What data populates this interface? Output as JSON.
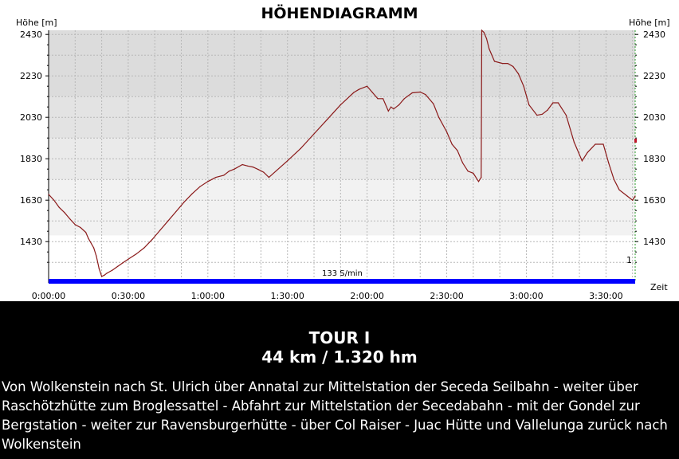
{
  "chart_data": {
    "type": "line",
    "title": "HÖHENDIAGRAMM",
    "ylabel": "Höhe [m]",
    "ylabel_right": "Höhe [m]",
    "xlabel": "Zeit",
    "ylim": [
      1250,
      2450
    ],
    "xlim": [
      0,
      221
    ],
    "yticks": [
      1430,
      1630,
      1830,
      2030,
      2230,
      2430
    ],
    "xticks": [
      0,
      30,
      60,
      90,
      120,
      150,
      180,
      210
    ],
    "xtick_labels": [
      "0:00:00",
      "0:30:00",
      "1:00:00",
      "1:30:00",
      "2:00:00",
      "2:30:00",
      "3:00:00",
      "3:30:00"
    ],
    "speed_label": "133 S/min",
    "right_marker_label": "1",
    "series": [
      {
        "color": "#8b1a1a",
        "x": [
          0,
          2,
          4,
          6,
          8,
          10,
          12,
          14,
          15,
          17,
          18,
          19,
          20,
          21,
          22,
          24,
          26,
          28,
          30,
          33,
          36,
          39,
          42,
          45,
          48,
          51,
          54,
          57,
          60,
          63,
          66,
          68,
          70,
          73,
          75,
          77,
          79,
          81,
          83,
          90,
          95,
          100,
          105,
          110,
          115,
          117,
          120,
          122,
          124,
          126,
          128,
          129,
          130,
          132,
          134,
          137,
          140,
          142,
          145,
          147,
          150,
          152,
          154,
          156,
          158,
          160,
          162,
          163,
          163.2,
          164,
          165,
          166,
          168,
          171,
          173,
          175,
          177,
          179,
          181,
          184,
          186,
          188,
          190,
          192,
          195,
          198,
          201,
          203,
          206,
          209,
          211,
          213,
          215,
          218,
          220,
          221
        ],
        "y": [
          1658,
          1630,
          1595,
          1570,
          1540,
          1512,
          1498,
          1475,
          1445,
          1400,
          1360,
          1300,
          1262,
          1268,
          1278,
          1292,
          1310,
          1328,
          1345,
          1370,
          1400,
          1440,
          1485,
          1530,
          1575,
          1620,
          1660,
          1695,
          1720,
          1740,
          1750,
          1770,
          1780,
          1802,
          1795,
          1790,
          1778,
          1765,
          1740,
          1820,
          1880,
          1950,
          2020,
          2090,
          2150,
          2165,
          2180,
          2150,
          2120,
          2120,
          2060,
          2080,
          2070,
          2090,
          2120,
          2148,
          2152,
          2140,
          2095,
          2030,
          1960,
          1900,
          1870,
          1810,
          1770,
          1760,
          1720,
          1740,
          2450,
          2440,
          2410,
          2360,
          2300,
          2290,
          2290,
          2275,
          2240,
          2180,
          2090,
          2040,
          2045,
          2065,
          2100,
          2100,
          2040,
          1910,
          1820,
          1860,
          1900,
          1900,
          1810,
          1730,
          1680,
          1650,
          1630,
          1650
        ]
      }
    ]
  },
  "tour": {
    "name": "TOUR I",
    "stats": "44 km / 1.320 hm",
    "description": "Von Wolkenstein nach St. Ulrich über Annatal zur Mittelstation der Seceda Seilbahn - weiter über Raschötzhütte zum Broglessattel - Abfahrt zur Mittelstation der Secedabahn - mit der Gondel zur Bergstation - weiter zur Ravensburgerhütte - über Col Raiser - Juac Hütte und Vallelunga zurück nach Wolkenstein"
  }
}
